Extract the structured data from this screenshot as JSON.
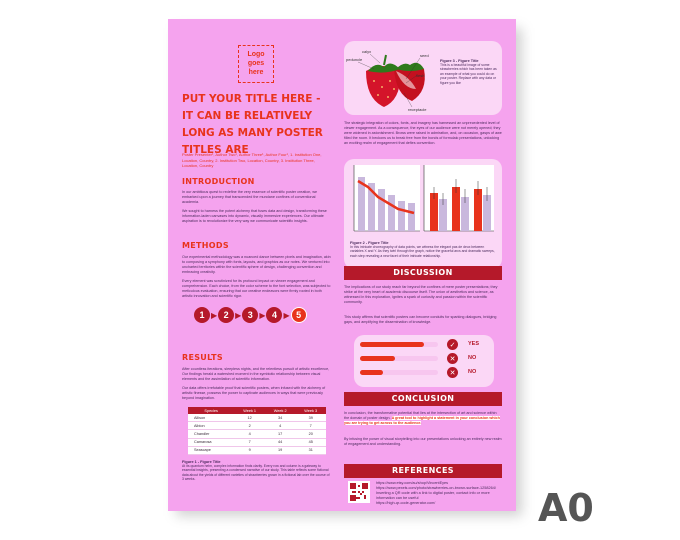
{
  "logo_text": "Logo\ngoes\nhere",
  "title": "PUT YOUR TITLE HERE - IT CAN BE RELATIVELY LONG AS MANY POSTER TITLES ARE",
  "authors": "Poster Presenter¹, Author Two¹, Author Three¹, Author Four¹, 1. Institution One, Location, Country, 2. Institution Two, Location, Country, 3. Institution Three, Location, Country",
  "introduction": {
    "heading": "INTRODUCTION",
    "p1": "In our ambitious quest to redefine the very essence of scientific poster creation, we embarked upon a journey that transcended the mundane confines of conventional academia.",
    "p2": "We sought to harness the potent alchemy that fuses data and design, transforming these information-laden canvases into dynamic, visually immersive experiences. Our ultimate aspiration is to revolutionize the very way we communicate scientific insights."
  },
  "methods": {
    "heading": "METHODS",
    "p1": "Our experimental methodology was a nuanced dance between pixels and imagination, akin to composing a symphony with fonts, layouts, and graphics as our notes. We ventured into uncharted territories within the scientific sphere of design, challenging convention and embracing creativity.",
    "p2": "Every element was scrutinized for its profound impact on viewer engagement and comprehension. Each choice, from the color scheme to the font selection, was subjected to meticulous evaluation, ensuring that our creative endeavors were firmly rooted in both artistic innovation and scientific rigor.",
    "steps": [
      "1",
      "2",
      "3",
      "4",
      "5"
    ]
  },
  "results": {
    "heading": "RESULTS",
    "p1": "After countless iterations, sleepless nights, and the relentless pursuit of artistic excellence, Our findings herald a watershed moment in the symbiotic relationship between visual elements and the assimilation of scientific information.",
    "p2": "Our data offers irrefutable proof that scientific posters, when infused with the alchemy of artistic finesse, possess the power to captivate audiences in ways that were previously beyond imagination.",
    "table": {
      "headers": [
        "Species",
        "Week 1",
        "Week 2",
        "Week 3"
      ],
      "rows": [
        [
          "Allison",
          "12",
          "34",
          "39"
        ],
        [
          "Albion",
          "2",
          "4",
          "7"
        ],
        [
          "Chandler",
          "4",
          "17",
          "20"
        ],
        [
          "Camarosa",
          "7",
          "44",
          "45"
        ],
        [
          "Seascape",
          "9",
          "19",
          "31"
        ]
      ]
    },
    "fig1_title": "Figure 1 - Figure Title",
    "fig1_caption": "At its quantum helm, complex information finds clarity. Every row and column is a gateway to essential insights, presenting a condensed narrative of our study. This table reflects some fictional data about the yields of different varieties of strawberries grown in a fictional lab over the course of 3 weeks."
  },
  "strawberry_labels": {
    "calyx": "calyx",
    "peduncle": "peduncle",
    "seed": "seed",
    "flesh": "flesh",
    "receptacle": "receptacle"
  },
  "fig3": {
    "title": "Figure 3 - Figure Title",
    "caption": "This is a beautiful image of some strawberries which has been taken as an example of what you could do on your poster. Replace with any data or figure you like"
  },
  "right_intro": "The strategic integration of colors, fonts, and imagery has harnessed an unprecedented level of viewer engagement. As a consequence, the eyes of our audience were not merely opened; they were widened in astonishment. Brows were raised in admiration, and, on occasion, gasps of awe filled the room. It beckons us to break free from the bonds of formulaic presentations, unlocking an exciting realm of engagement that defies convention.",
  "fig2": {
    "title": "Figure 2 - Figure Title",
    "caption": "In this intricate choreography of data points, we witness the elegant pas de deux between variables X and Y. As they twirl through the graph, notice the graceful arcs and dramatic sweeps, each step revealing a new facet of their intricate relationship."
  },
  "discussion": {
    "heading": "DISCUSSION",
    "p1": "The implications of our study reach far beyond the confines of mere poster presentations; they strike at the very heart of academic discourse itself. The union of aesthetics and science, as witnessed in this exploration, ignites a spark of curiosity and passion within the scientific community.",
    "p2": "This study affirms that scientific posters can become conduits for sparking dialogues, bridging gaps, and amplifying the dissemination of knowledge.",
    "gauges": [
      {
        "value": 0.82,
        "answer": "YES",
        "icon": "check-icon"
      },
      {
        "value": 0.45,
        "answer": "NO",
        "icon": "x-icon"
      },
      {
        "value": 0.3,
        "answer": "NO",
        "icon": "x-icon"
      }
    ]
  },
  "conclusion": {
    "heading": "CONCLUSION",
    "p1_start": "In conclusion, the transformative potential that lies at the intersection of art and science within the domain of poster design.",
    "p1_highlight": "A great tool to highlight a statement in your conclusion which you are trying to get across to the audience.",
    "p2": "By infusing the power of visual storytelling into our presentations unlocking an entirely new realm of engagement and understanding."
  },
  "references": {
    "heading": "REFERENCES",
    "lines": [
      "https://www.etsy.com/au/shop/VincentEyes",
      "https://www.pexels.com/photo/strawberries-on-brown-surface-1258264/",
      "Inserting a QR code with a link to digital poster, contact info or more information can be useful",
      "https://high-qr-code-generator.com/"
    ]
  },
  "format_label": "A0",
  "colors": {
    "background": "#f5a3ee",
    "accent": "#e8331c",
    "dark_red": "#b5192a",
    "text": "#4a2a5c"
  }
}
